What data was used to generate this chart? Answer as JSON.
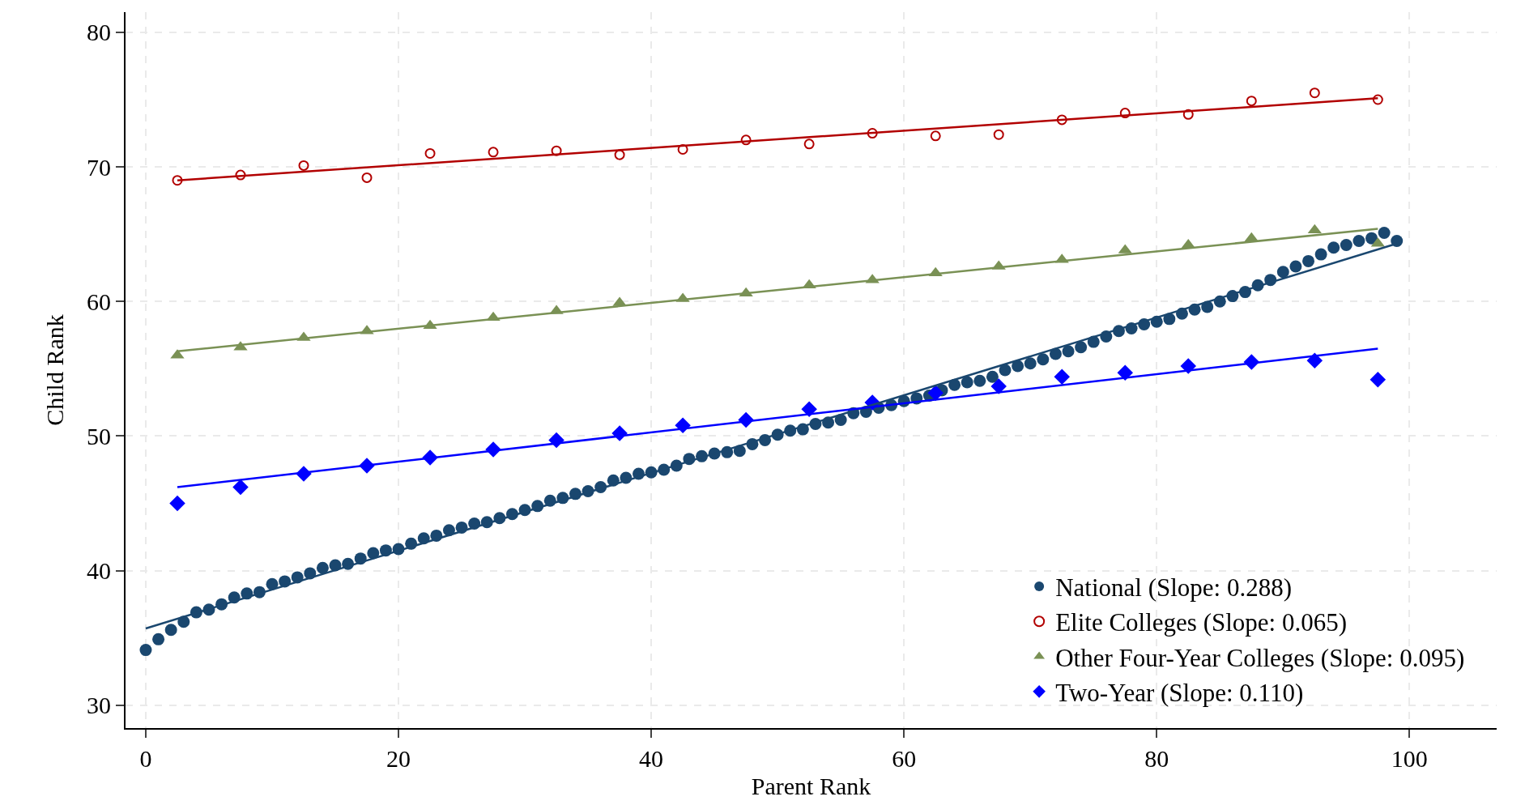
{
  "chart_data": {
    "type": "scatter",
    "xlabel": "Parent Rank",
    "ylabel": "Child Rank",
    "xlim": [
      -1.6,
      106.9
    ],
    "ylim": [
      28.3,
      81.5
    ],
    "xticks": [
      0,
      20,
      40,
      60,
      80,
      100
    ],
    "yticks": [
      30,
      40,
      50,
      60,
      70,
      80
    ],
    "grid": true,
    "legend": "bottom right",
    "series": [
      {
        "name": "National (Slope: 0.288)",
        "marker": "circle",
        "color": "#1a476f",
        "x": [
          0,
          1,
          2,
          3,
          4,
          5,
          6,
          7,
          8,
          9,
          10,
          11,
          12,
          13,
          14,
          15,
          16,
          17,
          18,
          19,
          20,
          21,
          22,
          23,
          24,
          25,
          26,
          27,
          28,
          29,
          30,
          31,
          32,
          33,
          34,
          35,
          36,
          37,
          38,
          39,
          40,
          41,
          42,
          43,
          44,
          45,
          46,
          47,
          48,
          49,
          50,
          51,
          52,
          53,
          54,
          55,
          56,
          57,
          58,
          59,
          60,
          61,
          62,
          63,
          64,
          65,
          66,
          67,
          68,
          69,
          70,
          71,
          72,
          73,
          74,
          75,
          76,
          77,
          78,
          79,
          80,
          81,
          82,
          83,
          84,
          85,
          86,
          87,
          88,
          89,
          90,
          91,
          92,
          93,
          94,
          95,
          96,
          97,
          98,
          99
        ],
        "values": [
          34.1,
          34.9,
          35.6,
          36.2,
          36.9,
          37.1,
          37.5,
          38.0,
          38.3,
          38.4,
          39.0,
          39.2,
          39.5,
          39.8,
          40.2,
          40.4,
          40.5,
          40.9,
          41.3,
          41.5,
          41.6,
          42.0,
          42.4,
          42.6,
          43.0,
          43.2,
          43.5,
          43.6,
          43.9,
          44.2,
          44.5,
          44.8,
          45.2,
          45.4,
          45.7,
          45.9,
          46.2,
          46.7,
          46.9,
          47.2,
          47.3,
          47.5,
          47.8,
          48.3,
          48.5,
          48.7,
          48.8,
          48.9,
          49.4,
          49.7,
          50.1,
          50.4,
          50.5,
          50.9,
          51.0,
          51.2,
          51.7,
          51.8,
          52.1,
          52.3,
          52.6,
          52.8,
          53.0,
          53.4,
          53.8,
          54.0,
          54.1,
          54.4,
          54.9,
          55.2,
          55.4,
          55.7,
          56.1,
          56.3,
          56.6,
          57.0,
          57.4,
          57.8,
          58.0,
          58.3,
          58.5,
          58.7,
          59.1,
          59.4,
          59.6,
          60.0,
          60.4,
          60.7,
          61.2,
          61.6,
          62.2,
          62.6,
          63.0,
          63.5,
          64.0,
          64.2,
          64.5,
          64.7,
          65.1,
          64.5
        ]
      },
      {
        "name": "Elite Colleges (Slope: 0.065)",
        "marker": "circle-open",
        "color": "#b20000",
        "x": [
          2.5,
          7.5,
          12.5,
          17.5,
          22.5,
          27.5,
          32.5,
          37.5,
          42.5,
          47.5,
          52.5,
          57.5,
          62.5,
          67.5,
          72.5,
          77.5,
          82.5,
          87.5,
          92.5,
          97.5
        ],
        "values": [
          69.0,
          69.4,
          70.1,
          69.2,
          71.0,
          71.1,
          71.2,
          70.9,
          71.3,
          72.0,
          71.7,
          72.5,
          72.3,
          72.4,
          73.5,
          74.0,
          73.9,
          74.9,
          75.5,
          75.0
        ]
      },
      {
        "name": "Other Four-Year Colleges (Slope: 0.095)",
        "marker": "triangle",
        "color": "#7a9155",
        "x": [
          2.5,
          7.5,
          12.5,
          17.5,
          22.5,
          27.5,
          32.5,
          37.5,
          42.5,
          47.5,
          52.5,
          57.5,
          62.5,
          67.5,
          72.5,
          77.5,
          82.5,
          87.5,
          92.5,
          97.5
        ],
        "values": [
          56.0,
          56.6,
          57.3,
          57.8,
          58.2,
          58.8,
          59.3,
          59.9,
          60.2,
          60.6,
          61.2,
          61.6,
          62.1,
          62.6,
          63.1,
          63.8,
          64.2,
          64.7,
          65.3,
          64.3
        ]
      },
      {
        "name": "Two-Year (Slope: 0.110)",
        "marker": "diamond",
        "color": "#0000ff",
        "x": [
          2.5,
          7.5,
          12.5,
          17.5,
          22.5,
          27.5,
          32.5,
          37.5,
          42.5,
          47.5,
          52.5,
          57.5,
          62.5,
          67.5,
          72.5,
          77.5,
          82.5,
          87.5,
          92.5,
          97.5
        ],
        "values": [
          45.0,
          46.2,
          47.2,
          47.8,
          48.4,
          49.0,
          49.7,
          50.2,
          50.8,
          51.2,
          52.0,
          52.5,
          53.2,
          53.7,
          54.4,
          54.7,
          55.2,
          55.5,
          55.6,
          54.2
        ]
      },
      {
        "type": "line",
        "color": "#1a476f",
        "x": [
          0,
          99
        ],
        "values": [
          35.7,
          64.3
        ]
      },
      {
        "type": "line",
        "color": "#b20000",
        "x": [
          2.5,
          97.5
        ],
        "values": [
          69.0,
          75.1
        ]
      },
      {
        "type": "line",
        "color": "#7a9155",
        "x": [
          2.5,
          97.5
        ],
        "values": [
          56.3,
          65.4
        ]
      },
      {
        "type": "line",
        "color": "#0000ff",
        "x": [
          2.5,
          97.5
        ],
        "values": [
          46.2,
          56.5
        ]
      }
    ]
  }
}
